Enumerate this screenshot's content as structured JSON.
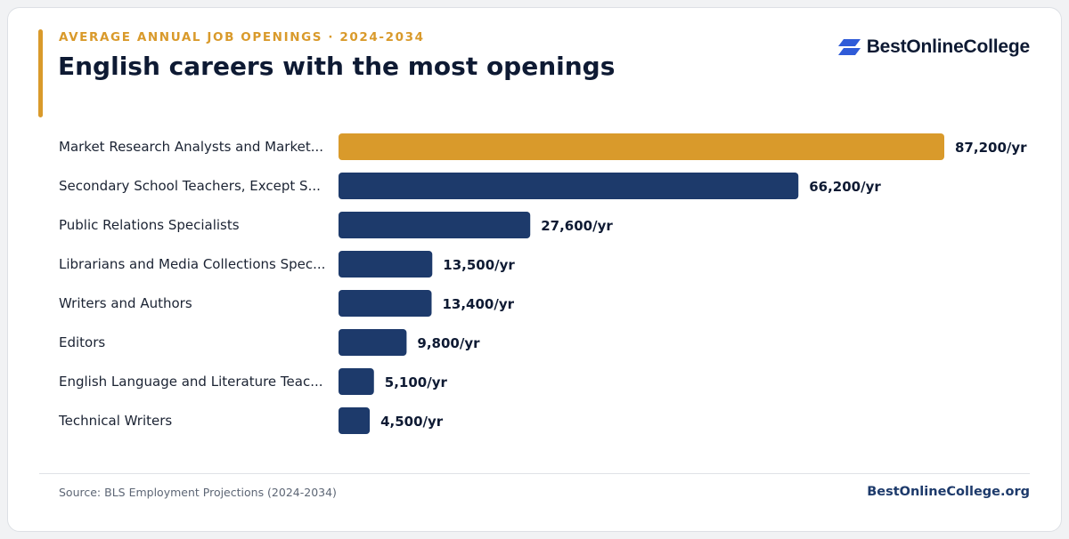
{
  "header": {
    "kicker": "AVERAGE ANNUAL JOB OPENINGS · 2024-2034",
    "title": "English careers with the most openings"
  },
  "brand": {
    "name": "BestOnlineCollege",
    "icon": "bestonlinecollege-logo-icon",
    "icon_color": "#2f5bd8"
  },
  "footer": {
    "source": "Source: BLS Employment Projections (2024-2034)",
    "site": "BestOnlineCollege.org"
  },
  "colors": {
    "highlight": "#d99a2b",
    "bar": "#1d3a6b",
    "text": "#0e1a33"
  },
  "chart_data": {
    "type": "bar",
    "orientation": "horizontal",
    "title": "English careers with the most openings",
    "subtitle": "AVERAGE ANNUAL JOB OPENINGS · 2024-2034",
    "categories": [
      "Market Research Analysts and Market...",
      "Secondary School Teachers, Except S...",
      "Public Relations Specialists",
      "Librarians and Media Collections Spec...",
      "Writers and Authors",
      "Editors",
      "English Language and Literature Teac...",
      "Technical Writers"
    ],
    "values": [
      87200,
      66200,
      27600,
      13500,
      13400,
      9800,
      5100,
      4500
    ],
    "value_labels": [
      "87,200/yr",
      "66,200/yr",
      "27,600/yr",
      "13,500/yr",
      "13,400/yr",
      "9,800/yr",
      "5,100/yr",
      "4,500/yr"
    ],
    "highlight_index": 0,
    "xlim": [
      0,
      87200
    ],
    "grid": false,
    "legend": "none"
  }
}
